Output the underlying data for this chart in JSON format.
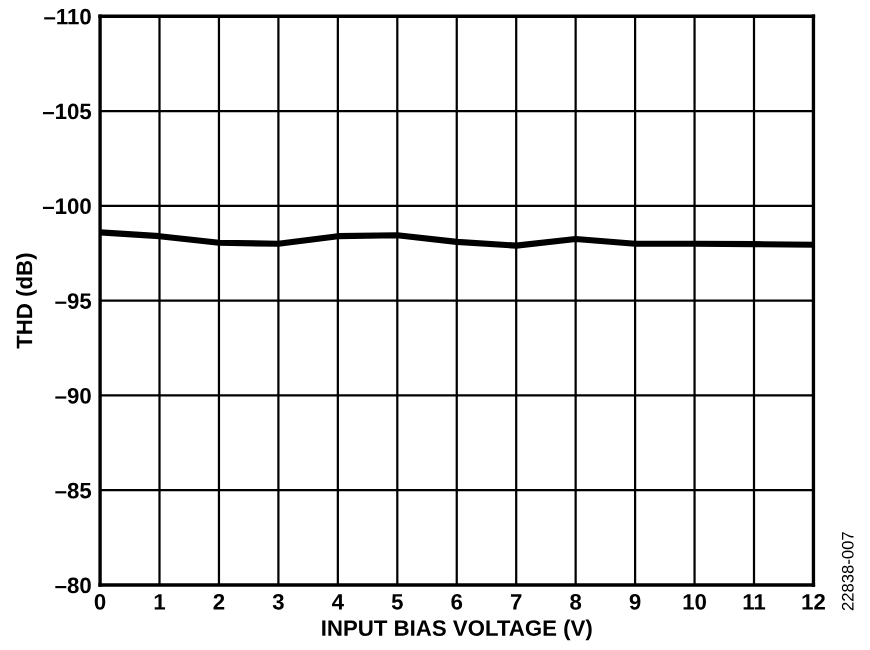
{
  "chart_data": {
    "type": "line",
    "xlabel": "INPUT BIAS VOLTAGE (V)",
    "ylabel": "THD (dB)",
    "x": [
      0,
      1,
      2,
      3,
      4,
      5,
      6,
      7,
      8,
      9,
      10,
      11,
      12
    ],
    "series": [
      {
        "color": "#000000",
        "values": [
          -98.6,
          -98.4,
          -98.05,
          -98.0,
          -98.4,
          -98.45,
          -98.1,
          -97.9,
          -98.25,
          -98.0,
          -98.0,
          -97.98,
          -97.95
        ]
      }
    ],
    "xlim": [
      0,
      12
    ],
    "xticks": [
      0,
      1,
      2,
      3,
      4,
      5,
      6,
      7,
      8,
      9,
      10,
      11,
      12
    ],
    "ylim": [
      -80,
      -110
    ],
    "yticks": [
      {
        "value": -80,
        "label": "–80"
      },
      {
        "value": -85,
        "label": "–85"
      },
      {
        "value": -90,
        "label": "–90"
      },
      {
        "value": -95,
        "label": "–95"
      },
      {
        "value": -100,
        "label": "–100"
      },
      {
        "value": -105,
        "label": "–105"
      },
      {
        "value": -110,
        "label": "–110"
      }
    ],
    "grid": true,
    "annotations": [
      "22838-007"
    ]
  }
}
